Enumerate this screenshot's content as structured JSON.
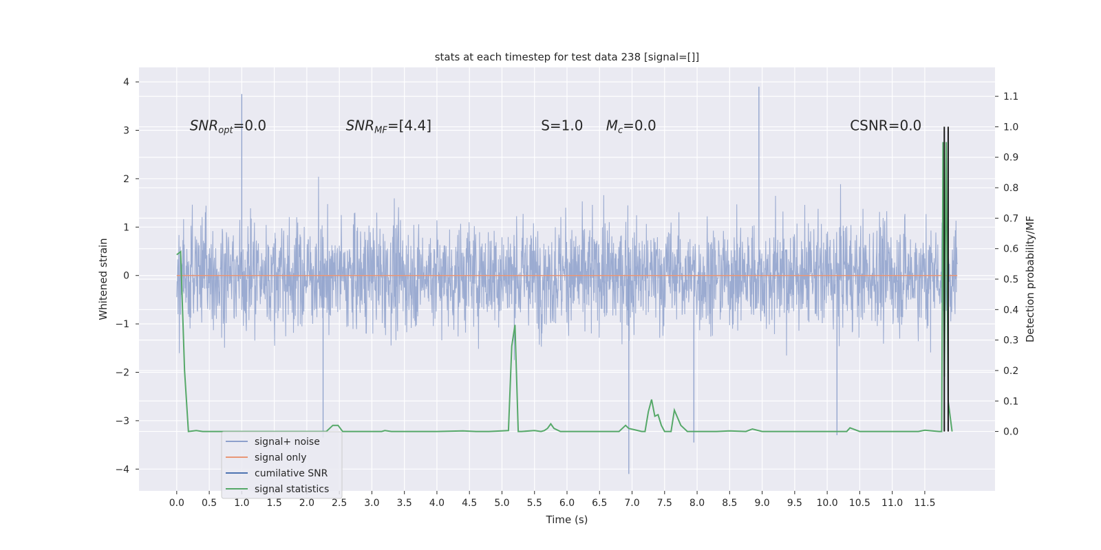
{
  "chart_data": {
    "type": "line",
    "title": "stats at each timestep for test data 238 [signal=[]]",
    "xlabel": "Time (s)",
    "ylabel": "Whitened strain",
    "y2label": "Detection probability/MF",
    "xlim": [
      -0.58,
      12.58
    ],
    "ylim": [
      -4.45,
      4.3
    ],
    "y2lim": [
      -0.195,
      1.195
    ],
    "xticks": [
      0.0,
      0.5,
      1.0,
      1.5,
      2.0,
      2.5,
      3.0,
      3.5,
      4.0,
      4.5,
      5.0,
      5.5,
      6.0,
      6.5,
      7.0,
      7.5,
      8.0,
      8.5,
      9.0,
      9.5,
      10.0,
      10.5,
      11.0,
      11.5
    ],
    "xtick_labels": [
      "0.0",
      "0.5",
      "1.0",
      "1.5",
      "2.0",
      "2.5",
      "3.0",
      "3.5",
      "4.0",
      "4.5",
      "5.0",
      "5.5",
      "6.0",
      "6.5",
      "7.0",
      "7.5",
      "8.0",
      "8.5",
      "9.0",
      "9.5",
      "10.0",
      "10.5",
      "11.0",
      "11.5"
    ],
    "yticks": [
      -4,
      -3,
      -2,
      -1,
      0,
      1,
      2,
      3,
      4
    ],
    "ytick_labels": [
      "−4",
      "−3",
      "−2",
      "−1",
      "0",
      "1",
      "2",
      "3",
      "4"
    ],
    "y2ticks": [
      0.0,
      0.1,
      0.2,
      0.3,
      0.4,
      0.5,
      0.6,
      0.7,
      0.8,
      0.9,
      1.0,
      1.1
    ],
    "y2tick_labels": [
      "0.0",
      "0.1",
      "0.2",
      "0.3",
      "0.4",
      "0.5",
      "0.6",
      "0.7",
      "0.8",
      "0.9",
      "1.0",
      "1.1"
    ],
    "grid": true,
    "legend_placement": "lower-left",
    "annotations": [
      {
        "text": "SNR_opt=0.0",
        "x": 0.2,
        "y": 3.0
      },
      {
        "text": "SNR_MF=[4.4]",
        "x": 2.6,
        "y": 3.0
      },
      {
        "text": "S=1.0",
        "x": 5.6,
        "y": 3.0
      },
      {
        "text": "M_c=0.0",
        "x": 6.6,
        "y": 3.0
      },
      {
        "text": "CSNR=0.0",
        "x": 10.35,
        "y": 3.0
      }
    ],
    "series": [
      {
        "name": "signal+ noise",
        "axis": "left",
        "color": "#8da0cb",
        "note_range": [
          0.0,
          12.0
        ],
        "envelope_typical": [
          -2.3,
          2.4
        ],
        "extreme_points": [
          {
            "x": 1.0,
            "y": 3.75
          },
          {
            "x": 8.95,
            "y": 3.9
          },
          {
            "x": 6.95,
            "y": -4.1
          },
          {
            "x": 7.95,
            "y": -3.45
          },
          {
            "x": 10.15,
            "y": -3.3
          },
          {
            "x": 2.25,
            "y": -3.35
          }
        ]
      },
      {
        "name": "signal only",
        "axis": "left",
        "color": "#e99675",
        "x": [
          0.0,
          12.0
        ],
        "y": [
          0.0,
          0.0
        ]
      },
      {
        "name": "cumilative SNR",
        "axis": "left",
        "color": "#4c72b0",
        "x": [],
        "y": []
      },
      {
        "name": "signal statistics",
        "axis": "right",
        "color": "#55a868",
        "x": [
          0.0,
          0.06,
          0.12,
          0.18,
          0.3,
          0.4,
          0.6,
          1.0,
          1.5,
          2.0,
          2.3,
          2.4,
          2.48,
          2.55,
          2.7,
          3.0,
          3.15,
          3.2,
          3.3,
          3.6,
          4.0,
          4.4,
          4.6,
          4.8,
          5.1,
          5.15,
          5.2,
          5.25,
          5.3,
          5.5,
          5.6,
          5.65,
          5.7,
          5.75,
          5.8,
          5.9,
          6.0,
          6.2,
          6.5,
          6.8,
          6.9,
          6.95,
          7.05,
          7.15,
          7.2,
          7.25,
          7.3,
          7.35,
          7.4,
          7.45,
          7.5,
          7.6,
          7.65,
          7.75,
          7.85,
          8.0,
          8.3,
          8.5,
          8.75,
          8.85,
          9.0,
          9.5,
          10.0,
          10.3,
          10.35,
          10.5,
          11.0,
          11.4,
          11.5,
          11.72,
          11.76,
          11.78,
          11.8,
          11.83,
          11.86,
          11.92
        ],
        "y": [
          0.58,
          0.59,
          0.2,
          0.0,
          0.003,
          0.0,
          0.0,
          0.0,
          0.0,
          0.0,
          0.0,
          0.02,
          0.02,
          0.0,
          0.0,
          0.0,
          0.0,
          0.003,
          0.0,
          0.0,
          0.0,
          0.002,
          0.0,
          0.0,
          0.003,
          0.28,
          0.35,
          0.0,
          0.0,
          0.003,
          0.0,
          0.003,
          0.01,
          0.025,
          0.01,
          0.0,
          0.0,
          0.0,
          0.0,
          0.0,
          0.02,
          0.01,
          0.005,
          0.0,
          0.0,
          0.065,
          0.105,
          0.05,
          0.055,
          0.02,
          0.0,
          0.0,
          0.07,
          0.02,
          0.0,
          0.0,
          0.0,
          0.002,
          0.0,
          0.008,
          0.0,
          0.0,
          0.0,
          0.0,
          0.012,
          0.0,
          0.0,
          0.0,
          0.004,
          0.0,
          0.0,
          0.95,
          0.18,
          0.95,
          0.1,
          0.0
        ]
      }
    ],
    "vertical_lines": [
      {
        "x": 11.8,
        "y2_range": [
          0.0,
          1.0
        ],
        "color": "#1a1a1a"
      },
      {
        "x": 11.86,
        "y2_range": [
          0.0,
          1.0
        ],
        "color": "#1a1a1a"
      }
    ]
  }
}
